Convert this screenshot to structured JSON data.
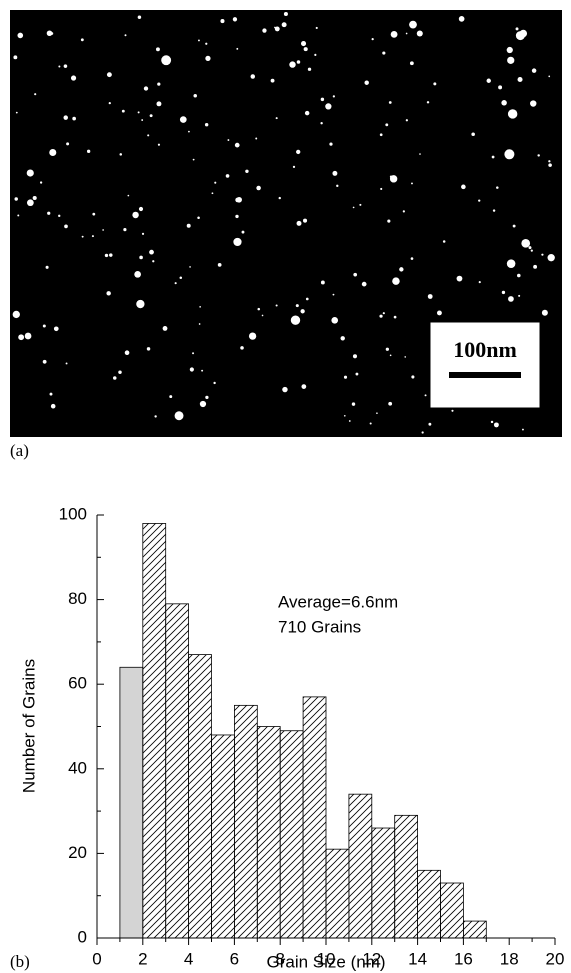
{
  "image_panel": {
    "label": "(a)",
    "scale_bar": "100nm"
  },
  "chart_data": {
    "type": "histogram",
    "panel_label": "(b)",
    "xlabel": "Grain Size (nm)",
    "ylabel": "Number of Grains",
    "annotations": [
      "Average=6.6nm",
      "710 Grains"
    ],
    "bins": [
      1,
      2,
      3,
      4,
      5,
      6,
      7,
      8,
      9,
      10,
      11,
      12,
      13,
      14,
      15,
      16,
      17
    ],
    "values": [
      64,
      98,
      79,
      67,
      48,
      55,
      50,
      49,
      57,
      21,
      34,
      26,
      29,
      16,
      13,
      4
    ],
    "pattern": "diagonal-hatch",
    "highlight": {
      "bin": 0,
      "color": "#d4d4d4"
    },
    "xlim": [
      0,
      20
    ],
    "xticks": [
      0,
      2,
      4,
      6,
      8,
      10,
      12,
      14,
      16,
      18,
      20
    ],
    "xminorticks": [
      1,
      3,
      5,
      7,
      9,
      11,
      13,
      15,
      17,
      19
    ],
    "ylim": [
      0,
      100
    ],
    "yticks": [
      0,
      20,
      40,
      60,
      80,
      100
    ],
    "yminorticks": [
      10,
      30,
      50,
      70,
      90
    ]
  }
}
